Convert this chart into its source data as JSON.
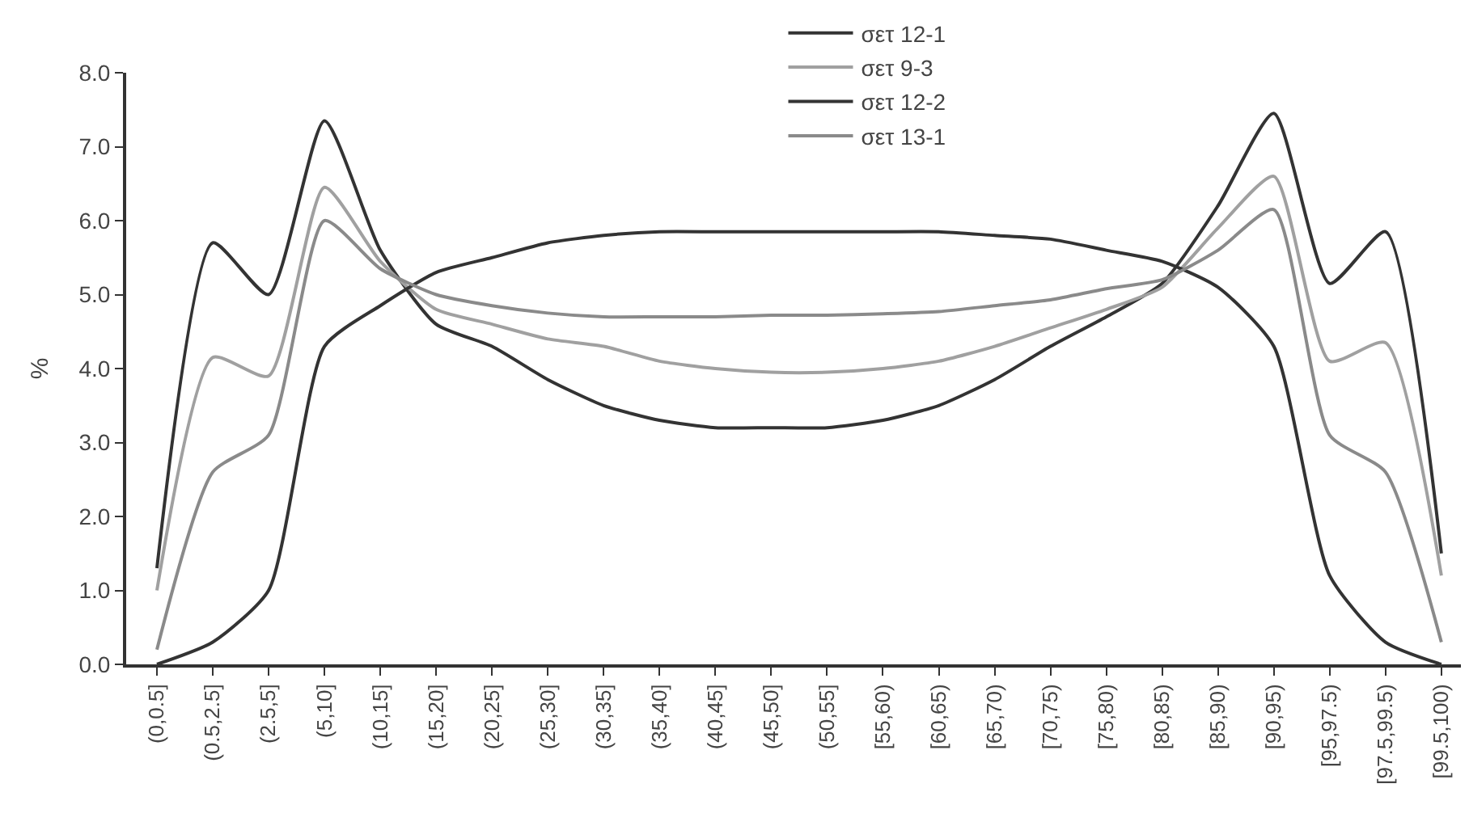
{
  "chart_data": {
    "type": "line",
    "ylabel": "%",
    "categories": [
      "(0,0.5]",
      "(0.5,2.5]",
      "(2.5,5]",
      "(5,10]",
      "(10,15]",
      "(15,20]",
      "(20,25]",
      "(25,30]",
      "(30,35]",
      "(35,40]",
      "(40,45]",
      "(45,50]",
      "(50,55]",
      "[55,60)",
      "[60,65)",
      "[65,70)",
      "[70,75)",
      "[75,80)",
      "[80,85)",
      "[85,90)",
      "[90,95)",
      "[95,97.5)",
      "[97.5,99.5)",
      "[99.5,100)"
    ],
    "series": [
      {
        "name": "σετ 12-1",
        "color": "#333333",
        "values": [
          1.3,
          5.7,
          5.0,
          7.35,
          5.6,
          4.6,
          4.3,
          3.85,
          3.5,
          3.3,
          3.2,
          3.2,
          3.2,
          3.3,
          3.5,
          3.85,
          4.3,
          4.7,
          5.15,
          6.2,
          7.45,
          5.15,
          5.85,
          1.5
        ]
      },
      {
        "name": "σετ 9-3",
        "color": "#a0a0a0",
        "values": [
          1.0,
          4.15,
          3.9,
          6.45,
          5.45,
          4.8,
          4.6,
          4.4,
          4.3,
          4.1,
          4.0,
          3.95,
          3.95,
          4.0,
          4.1,
          4.3,
          4.55,
          4.8,
          5.1,
          5.9,
          6.6,
          4.1,
          4.35,
          1.2
        ]
      },
      {
        "name": "σετ 12-2",
        "color": "#333333",
        "values": [
          0.0,
          0.3,
          1.0,
          4.3,
          4.85,
          5.3,
          5.5,
          5.7,
          5.8,
          5.85,
          5.85,
          5.85,
          5.85,
          5.85,
          5.85,
          5.8,
          5.75,
          5.6,
          5.45,
          5.1,
          4.3,
          1.2,
          0.3,
          0.0
        ]
      },
      {
        "name": "σετ 13-1",
        "color": "#8a8a8a",
        "values": [
          0.2,
          2.6,
          3.1,
          6.0,
          5.35,
          5.0,
          4.85,
          4.75,
          4.7,
          4.7,
          4.7,
          4.72,
          4.72,
          4.74,
          4.77,
          4.85,
          4.93,
          5.08,
          5.2,
          5.6,
          6.15,
          3.1,
          2.6,
          0.3
        ]
      }
    ],
    "ylim": [
      0,
      8
    ],
    "yticks": [
      {
        "value": 0,
        "label": "0.0"
      },
      {
        "value": 1,
        "label": "1.0"
      },
      {
        "value": 2,
        "label": "2.0"
      },
      {
        "value": 3,
        "label": "3.0"
      },
      {
        "value": 4,
        "label": "4.0"
      },
      {
        "value": 5,
        "label": "5.0"
      },
      {
        "value": 6,
        "label": "6.0"
      },
      {
        "value": 7,
        "label": "7.0"
      },
      {
        "value": 8,
        "label": "8.0"
      }
    ],
    "legend": "top",
    "marker": "none",
    "line_style": "solid"
  }
}
